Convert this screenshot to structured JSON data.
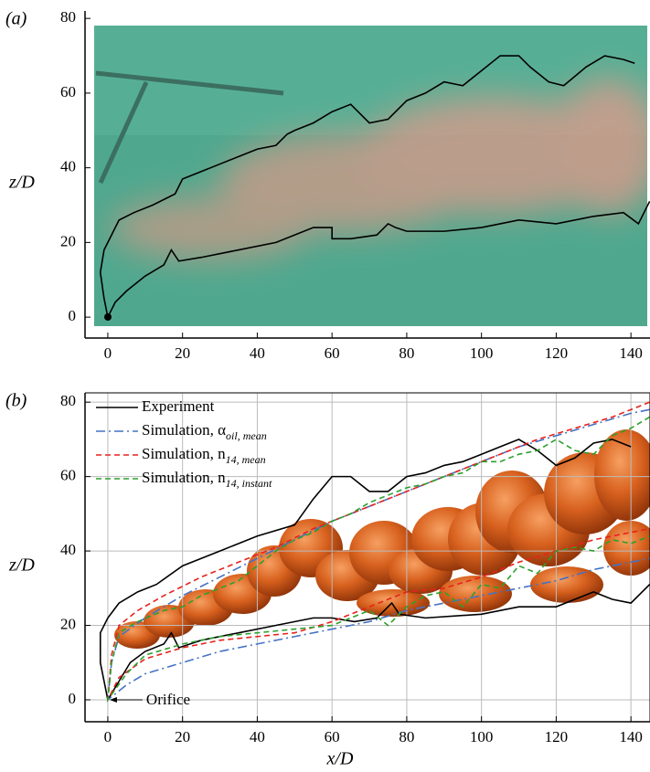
{
  "chart_data": [
    {
      "type": "line",
      "panel_label": "(a)",
      "ylabel": "z/D",
      "xlim": [
        -6.1,
        145.1
      ],
      "ylim": [
        -5.6,
        82
      ],
      "xticks": [
        0,
        20,
        40,
        60,
        80,
        100,
        120,
        140
      ],
      "yticks": [
        0,
        20,
        40,
        60,
        80
      ],
      "grid": false,
      "legend": false,
      "series": [
        {
          "color": "#000000",
          "dash": "solid",
          "x": [
            141,
            138,
            133,
            128,
            122,
            118,
            113,
            110,
            105,
            100,
            95,
            90,
            85,
            80,
            75,
            70,
            65,
            60,
            55,
            50,
            48,
            45,
            40,
            35,
            30,
            25,
            20,
            18,
            12,
            7,
            3,
            1,
            -1,
            -2,
            -1,
            0,
            2,
            5,
            10,
            15,
            17,
            19,
            25,
            35,
            45,
            55,
            60,
            60,
            65,
            72,
            75,
            77,
            80,
            90,
            100,
            110,
            120,
            130,
            138,
            142,
            145
          ],
          "values": [
            68,
            69,
            70,
            67,
            62,
            63,
            67,
            70,
            70,
            66,
            62,
            63,
            60,
            58,
            53,
            52,
            57,
            55,
            52,
            50,
            49,
            46,
            45,
            43,
            41,
            39,
            37,
            33,
            30,
            28,
            26,
            22,
            18,
            12,
            5,
            0,
            4,
            7,
            11,
            14,
            18,
            15,
            16,
            18,
            20,
            24,
            24,
            21,
            21,
            22,
            25,
            24,
            23,
            23,
            24,
            26,
            25,
            27,
            28,
            25,
            31
          ]
        }
      ]
    },
    {
      "type": "line",
      "panel_label": "(b)",
      "ylabel": "z/D",
      "xlabel": "x/D",
      "xlim": [
        -6.1,
        145.1
      ],
      "ylim": [
        -5.9,
        82.5
      ],
      "xticks": [
        0,
        20,
        40,
        60,
        80,
        100,
        120,
        140
      ],
      "yticks": [
        0,
        20,
        40,
        60,
        80
      ],
      "grid": true,
      "legend": "upper left",
      "annotation": "Orifice",
      "annotation_xy": [
        0,
        0
      ],
      "series": [
        {
          "name": "Experiment",
          "color": "#000000",
          "dash": "solid",
          "x": [
            140,
            135,
            130,
            125,
            120,
            115,
            110,
            105,
            100,
            95,
            90,
            85,
            80,
            75,
            70,
            65,
            60,
            55,
            50,
            40,
            30,
            20,
            13,
            8,
            3,
            0,
            -2,
            -2,
            0,
            3,
            6,
            10,
            15,
            17,
            19,
            25,
            35,
            45,
            55,
            60,
            66,
            72,
            76,
            78,
            85,
            100,
            110,
            120,
            130,
            135,
            140,
            145
          ],
          "values": [
            68,
            70,
            69,
            65,
            63,
            67,
            70,
            68,
            66,
            64,
            63,
            61,
            60,
            56,
            56,
            60,
            60,
            54,
            47,
            44,
            40,
            36,
            31,
            29,
            26,
            22,
            18,
            10,
            0,
            5,
            10,
            13,
            15,
            18,
            14,
            16,
            18,
            20,
            22,
            22,
            21,
            22,
            26,
            23,
            22,
            23,
            25,
            25,
            29,
            27,
            26,
            31
          ]
        },
        {
          "name": "Simulation, α",
          "subscript": "oil, mean",
          "color": "#4472c4",
          "dash": "dashdot",
          "x": [
            145,
            140,
            130,
            120,
            110,
            100,
            90,
            80,
            70,
            60,
            50,
            40,
            30,
            20,
            10,
            3,
            1,
            0,
            5,
            10,
            20,
            30,
            40,
            50,
            60,
            70,
            80,
            90,
            100,
            110,
            120,
            130,
            140,
            145
          ],
          "values": [
            78,
            77,
            74,
            71,
            68,
            64,
            60,
            56,
            52,
            48,
            43,
            38,
            33,
            28,
            22,
            17,
            10,
            0,
            4,
            7,
            10,
            13,
            15,
            17,
            19,
            21,
            24,
            26,
            28,
            30,
            32,
            35,
            37,
            38
          ]
        },
        {
          "name": "Simulation, n",
          "subscript": "14, mean",
          "color": "#e8211d",
          "dash": "dashed",
          "x": [
            145,
            135,
            125,
            115,
            105,
            95,
            85,
            75,
            65,
            55,
            45,
            35,
            25,
            15,
            8,
            3,
            1,
            0,
            3,
            10,
            20,
            30,
            40,
            50,
            60,
            70,
            80,
            90,
            100,
            110,
            120,
            130,
            140,
            145
          ],
          "values": [
            80,
            76,
            73,
            70,
            66,
            62,
            58,
            54,
            50,
            46,
            41,
            37,
            33,
            28,
            24,
            20,
            12,
            0,
            6,
            11,
            14,
            16,
            17,
            18,
            21,
            25,
            29,
            30,
            33,
            37,
            40,
            43,
            45,
            46
          ]
        },
        {
          "name": "Simulation, n",
          "subscript": "14, instant",
          "color": "#2ca02c",
          "dash": "dashed",
          "x": [
            145,
            140,
            135,
            130,
            125,
            120,
            115,
            110,
            105,
            100,
            95,
            90,
            85,
            80,
            75,
            70,
            65,
            60,
            55,
            50,
            45,
            40,
            35,
            30,
            25,
            20,
            15,
            8,
            3,
            1,
            0,
            5,
            10,
            20,
            30,
            40,
            50,
            60,
            70,
            75,
            80,
            85,
            90,
            95,
            100,
            105,
            110,
            115,
            120,
            125,
            130,
            135,
            140,
            145
          ],
          "values": [
            76,
            73,
            71,
            66,
            67,
            70,
            67,
            66,
            64,
            64,
            61,
            60,
            58,
            57,
            55,
            53,
            50,
            48,
            45,
            43,
            40,
            36,
            32,
            30,
            28,
            25,
            24,
            21,
            18,
            10,
            0,
            7,
            12,
            15,
            17,
            18,
            19,
            20,
            24,
            20,
            25,
            28,
            29,
            25,
            31,
            30,
            36,
            34,
            40,
            41,
            40,
            43,
            42,
            44
          ]
        }
      ]
    }
  ]
}
